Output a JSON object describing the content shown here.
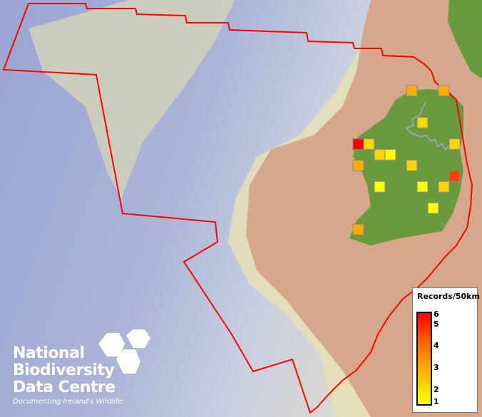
{
  "legend": {
    "title": "Records/50km",
    "ticks": [
      "6",
      "5",
      "4",
      "3",
      "2",
      "1"
    ],
    "min": 1,
    "max": 6,
    "ramp_colors": [
      "#ffff00",
      "#ffa000",
      "#ff5000",
      "#ff0000"
    ]
  },
  "logo": {
    "line1": "National",
    "line2": "Biodiversity",
    "line3": "Data Centre",
    "tagline": "Documenting Ireland's Wildlife"
  },
  "records": [
    3,
    3,
    2,
    6,
    2,
    2,
    1,
    3,
    2,
    2,
    5,
    1,
    1,
    2,
    1,
    3
  ],
  "colors": {
    "boundary": "#ff0000",
    "land": "#d6a88a",
    "ireland": "#6b9a3c",
    "shelf": "#e8e2b8",
    "deep": "#8f9ccc"
  }
}
